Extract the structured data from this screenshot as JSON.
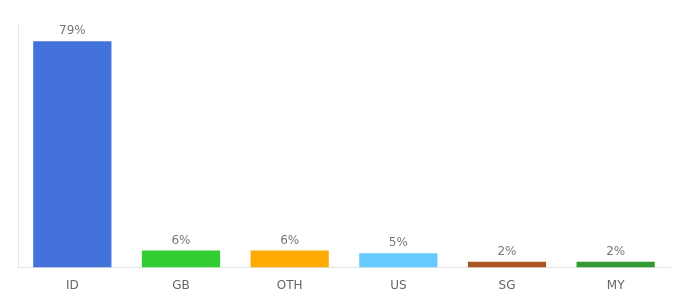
{
  "chart_data": {
    "type": "bar",
    "categories": [
      "ID",
      "GB",
      "OTH",
      "US",
      "SG",
      "MY"
    ],
    "values": [
      79,
      6,
      6,
      5,
      2,
      2
    ],
    "value_labels": [
      "79%",
      "6%",
      "6%",
      "5%",
      "2%",
      "2%"
    ],
    "colors": [
      "#4472db",
      "#33cc33",
      "#ffaa00",
      "#66ccff",
      "#aa5522",
      "#339933"
    ],
    "ylim": [
      0,
      85
    ],
    "data_labels": true,
    "tick_labels": "x",
    "grid": false
  }
}
